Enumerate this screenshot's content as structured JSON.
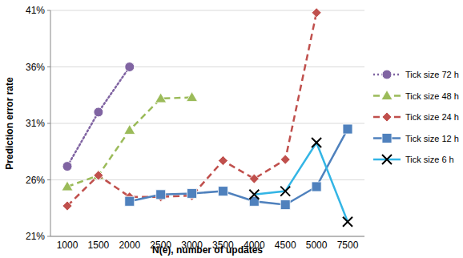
{
  "chart_data": {
    "type": "line",
    "x_label": "N(e), number of updates",
    "y_label": "Prediction error rate",
    "categories": [
      "1000",
      "1500",
      "2000",
      "2500",
      "3000",
      "3500",
      "4000",
      "4500",
      "5000",
      "7500"
    ],
    "ylim": [
      21,
      41
    ],
    "yticks": [
      {
        "value": 21,
        "label": "21%"
      },
      {
        "value": 26,
        "label": "26%"
      },
      {
        "value": 31,
        "label": "31%"
      },
      {
        "value": 36,
        "label": "36%"
      },
      {
        "value": 41,
        "label": "41%"
      }
    ],
    "grid": true,
    "legend": "right",
    "series": [
      {
        "name": "Tick size 72 h",
        "color": "#8064a2",
        "marker": "circle",
        "line_style": "dotted",
        "values": [
          27.2,
          32.0,
          36.0,
          null,
          null,
          null,
          null,
          null,
          null,
          null
        ]
      },
      {
        "name": "Tick size 48 h",
        "color": "#9bbb59",
        "marker": "triangle",
        "line_style": "dashed",
        "values": [
          25.4,
          26.4,
          30.4,
          33.2,
          33.3,
          null,
          null,
          null,
          null,
          null
        ]
      },
      {
        "name": "Tick size 24 h",
        "color": "#c0504d",
        "marker": "diamond",
        "line_style": "dashed",
        "values": [
          23.7,
          26.4,
          24.5,
          24.5,
          24.6,
          27.7,
          26.1,
          27.8,
          40.8,
          null
        ]
      },
      {
        "name": "Tick size 12 h",
        "color": "#4f81bd",
        "marker": "square",
        "line_style": "solid",
        "values": [
          null,
          null,
          24.1,
          24.7,
          24.8,
          25.0,
          24.1,
          23.8,
          25.4,
          30.5
        ]
      },
      {
        "name": "Tick size 6 h",
        "color": "#33b5e5",
        "marker": "x",
        "line_style": "solid",
        "values": [
          null,
          null,
          null,
          null,
          null,
          null,
          24.7,
          25.0,
          29.3,
          22.3
        ]
      }
    ]
  }
}
